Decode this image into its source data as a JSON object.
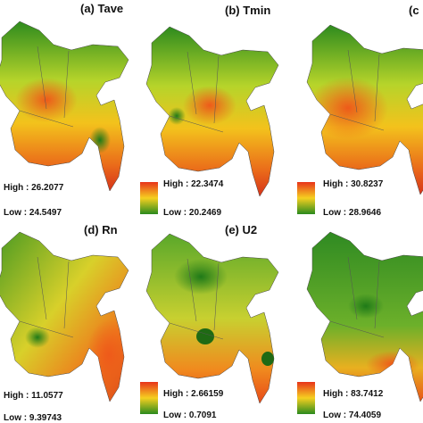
{
  "panels": [
    {
      "title": "(a) Tave",
      "high": "High : 26.2077",
      "low": "Low : 24.5497"
    },
    {
      "title": "(b) Tmin",
      "high": "High : 22.3474",
      "low": "Low : 20.2469"
    },
    {
      "title": "(c",
      "high": "High : 30.8237",
      "low": "Low : 28.9646"
    },
    {
      "title": "(d) Rn",
      "high": "High : 11.0577",
      "low": "Low : 9.39743"
    },
    {
      "title": "(e) U2",
      "high": "High : 2.66159",
      "low": "Low : 0.7091"
    },
    {
      "high": "High : 83.7412",
      "low": "Low : 74.4059"
    }
  ]
}
